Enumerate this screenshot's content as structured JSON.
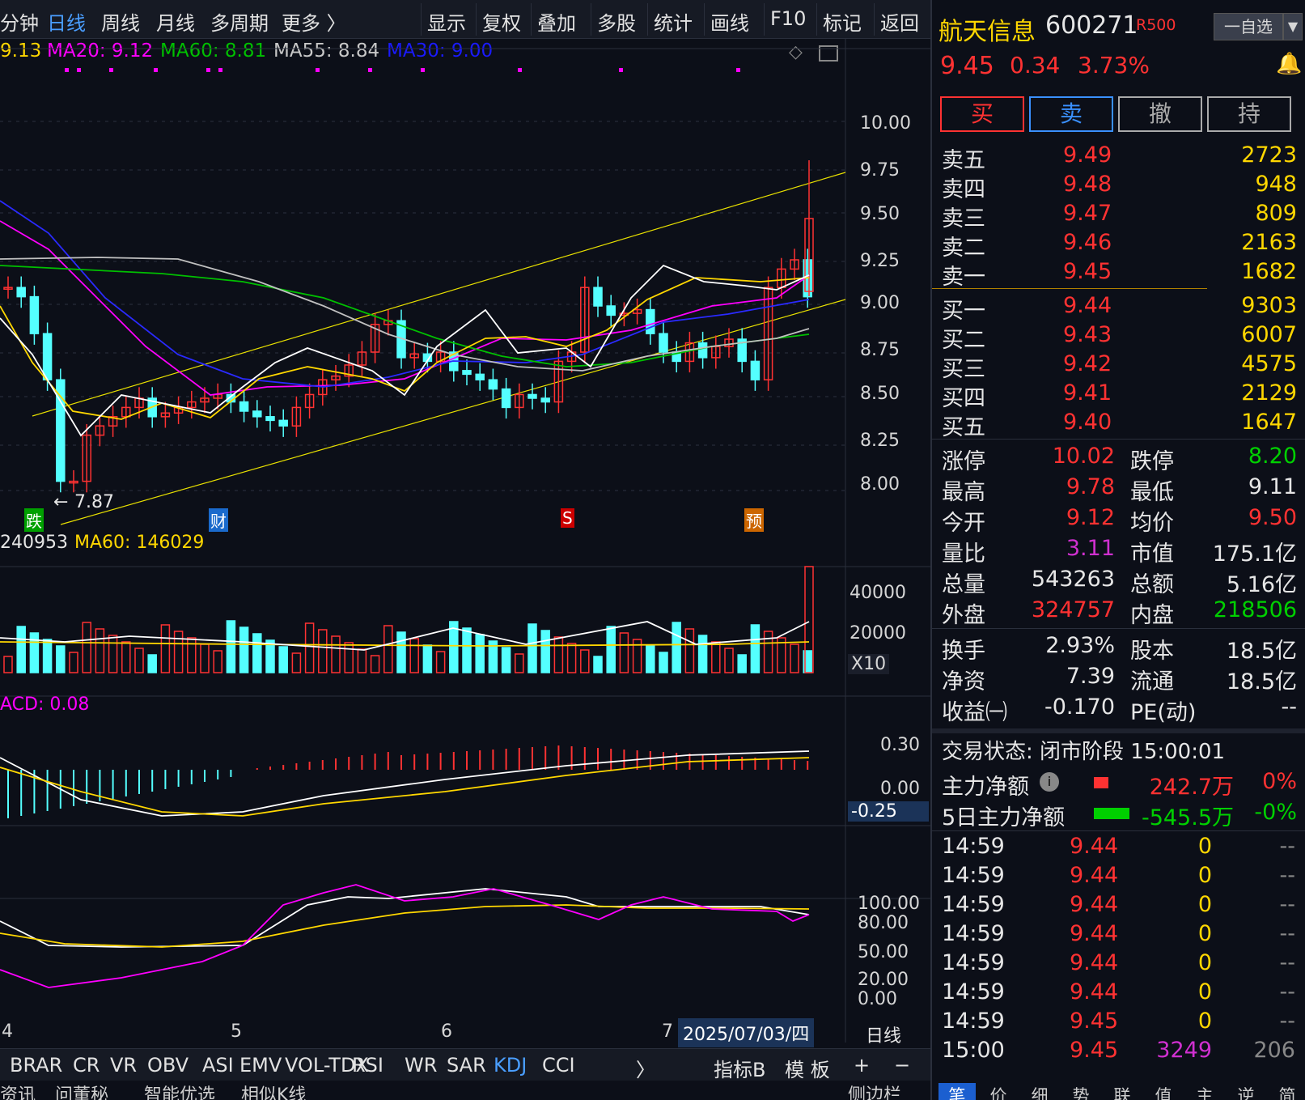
{
  "toolbar": {
    "items": [
      "分钟",
      "日线",
      "周线",
      "月线",
      "多周期",
      "更多",
      "显示",
      "复权",
      "叠加",
      "多股",
      "统计",
      "画线",
      "F10",
      "标记",
      "返回"
    ],
    "active": "日线"
  },
  "ma_legend": {
    "ma5": "9.13",
    "ma20": "MA20: 9.12",
    "ma60": "MA60: 8.81",
    "ma55": "MA55: 8.84",
    "ma30": "MA30: 9.00"
  },
  "colors": {
    "up": "#ff3232",
    "down": "#54ffff",
    "ma5": "#ffffff",
    "ma10": "#ffd700",
    "ma20": "#ff00ff",
    "ma30": "#0000ff",
    "ma60": "#00c000",
    "ma55": "#c0c0c0",
    "bg": "#0c0f18"
  },
  "price_axis": [
    "10.00",
    "9.75",
    "9.50",
    "9.25",
    "9.00",
    "8.75",
    "8.50",
    "8.25",
    "8.00"
  ],
  "low_annotation": "7.87",
  "event_markers": [
    "跌",
    "财",
    "S",
    "预"
  ],
  "volume": {
    "legend_value": "240953",
    "ma60": "MA60: 146029",
    "axis": [
      "40000",
      "20000"
    ],
    "multiplier": "X10"
  },
  "macd": {
    "legend": "ACD: 0.08",
    "axis": [
      "0.30",
      "0.00",
      "-0.25"
    ]
  },
  "kdj": {
    "axis": [
      "100.00",
      "80.00",
      "50.00",
      "20.00",
      "0.00"
    ]
  },
  "x_axis": {
    "labels": [
      "4",
      "5",
      "6",
      "7"
    ],
    "cursor_date": "2025/07/03/四",
    "period": "日线"
  },
  "indicators": [
    "BRAR",
    "CR",
    "VR",
    "OBV",
    "ASI",
    "EMV",
    "VOL-TDX",
    "RSI",
    "WR",
    "SAR",
    "KDJ",
    "CCI"
  ],
  "active_indicator": "KDJ",
  "indicator_tools": [
    "指标B",
    "模 板",
    "+",
    "−"
  ],
  "bottom_tabs": [
    "资讯",
    "问董秘",
    "智能优选",
    "相似K线",
    "侧边栏"
  ],
  "stock": {
    "name": "航天信息",
    "code": "600271",
    "badge": "R500",
    "watch_label": "一自选",
    "price": "9.45",
    "change": "0.34",
    "pct": "3.73%"
  },
  "trade_buttons": [
    "买",
    "卖",
    "撤",
    "持"
  ],
  "asks": [
    {
      "label": "卖五",
      "price": "9.49",
      "vol": "2723"
    },
    {
      "label": "卖四",
      "price": "9.48",
      "vol": "948"
    },
    {
      "label": "卖三",
      "price": "9.47",
      "vol": "809"
    },
    {
      "label": "卖二",
      "price": "9.46",
      "vol": "2163"
    },
    {
      "label": "卖一",
      "price": "9.45",
      "vol": "1682"
    }
  ],
  "bids": [
    {
      "label": "买一",
      "price": "9.44",
      "vol": "9303"
    },
    {
      "label": "买二",
      "price": "9.43",
      "vol": "6007"
    },
    {
      "label": "买三",
      "price": "9.42",
      "vol": "4575"
    },
    {
      "label": "买四",
      "price": "9.41",
      "vol": "2129"
    },
    {
      "label": "买五",
      "price": "9.40",
      "vol": "1647"
    }
  ],
  "stats": [
    {
      "l1": "涨停",
      "v1": "10.02",
      "c1": "#ff3232",
      "l2": "跌停",
      "v2": "8.20",
      "c2": "#00d000"
    },
    {
      "l1": "最高",
      "v1": "9.78",
      "c1": "#ff3232",
      "l2": "最低",
      "v2": "9.11",
      "c2": "#e6e6e6"
    },
    {
      "l1": "今开",
      "v1": "9.12",
      "c1": "#ff3232",
      "l2": "均价",
      "v2": "9.50",
      "c2": "#ff3232"
    },
    {
      "l1": "量比",
      "v1": "3.11",
      "c1": "#d030d0",
      "l2": "市值",
      "v2": "175.1亿",
      "c2": "#e6e6e6"
    },
    {
      "l1": "总量",
      "v1": "543263",
      "c1": "#e6e6e6",
      "l2": "总额",
      "v2": "5.16亿",
      "c2": "#e6e6e6"
    },
    {
      "l1": "外盘",
      "v1": "324757",
      "c1": "#ff3232",
      "l2": "内盘",
      "v2": "218506",
      "c2": "#00d000"
    }
  ],
  "stats2": [
    {
      "l1": "换手",
      "v1": "2.93%",
      "l2": "股本",
      "v2": "18.5亿"
    },
    {
      "l1": "净资",
      "v1": "7.39",
      "l2": "流通",
      "v2": "18.5亿"
    },
    {
      "l1": "收益㈠",
      "v1": "-0.170",
      "l2": "PE(动)",
      "v2": "--"
    }
  ],
  "trade_status": "交易状态: 闭市阶段 15:00:01",
  "fund_flow": [
    {
      "label": "主力净额",
      "value": "242.7万",
      "pct": "0%"
    },
    {
      "label": "5日主力净额",
      "value": "-545.5万",
      "pct": "-0%"
    }
  ],
  "ticks": [
    {
      "t": "14:59",
      "p": "9.44",
      "v": "0",
      "n": "--"
    },
    {
      "t": "14:59",
      "p": "9.44",
      "v": "0",
      "n": "--"
    },
    {
      "t": "14:59",
      "p": "9.44",
      "v": "0",
      "n": "--"
    },
    {
      "t": "14:59",
      "p": "9.44",
      "v": "0",
      "n": "--"
    },
    {
      "t": "14:59",
      "p": "9.44",
      "v": "0",
      "n": "--"
    },
    {
      "t": "14:59",
      "p": "9.44",
      "v": "0",
      "n": "--"
    },
    {
      "t": "14:59",
      "p": "9.45",
      "v": "0",
      "n": "--"
    },
    {
      "t": "15:00",
      "p": "9.45",
      "v": "3249",
      "n": "206"
    }
  ],
  "right_tabs": [
    "笔",
    "价",
    "细",
    "势",
    "联",
    "值",
    "主",
    "逆",
    "简"
  ]
}
